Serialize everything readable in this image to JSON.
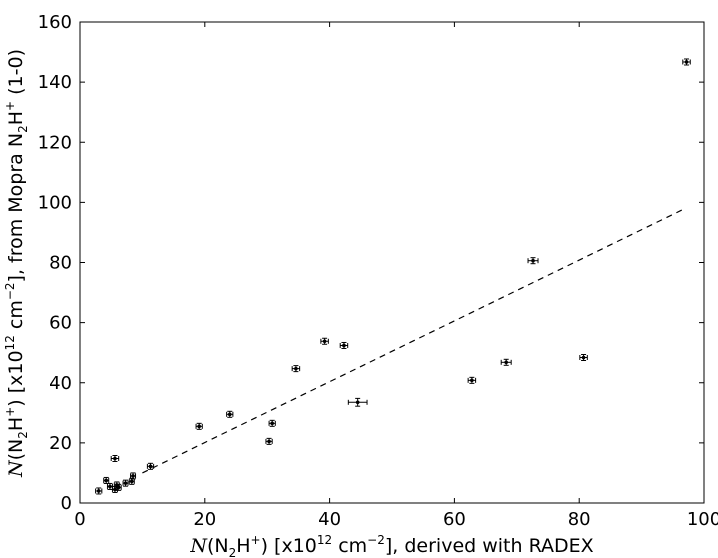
{
  "chart_data": {
    "type": "scatter",
    "title": "",
    "xlabel": {
      "pre": "N",
      "mid": "(N",
      "sub": "2",
      "post": "H",
      "sup": "+",
      "tail": ") [x10",
      "exp": "12",
      "unit": " cm",
      "uexp": "−2",
      "end": "], derived with RADEX"
    },
    "ylabel": {
      "pre": "N",
      "mid": "(N",
      "sub": "2",
      "post": "H",
      "sup": "+",
      "tail": ") [x10",
      "exp": "12",
      "unit": " cm",
      "uexp": "−2",
      "end": "], from Mopra N",
      "sub2": "2",
      "post2": "H",
      "sup2": "+",
      "end2": " (1-0)"
    },
    "xlim": [
      0,
      100
    ],
    "ylim": [
      0,
      160
    ],
    "xticks": [
      0,
      20,
      40,
      60,
      80,
      100
    ],
    "yticks": [
      0,
      20,
      40,
      60,
      80,
      100,
      120,
      140,
      160
    ],
    "grid": false,
    "fit_line": {
      "style": "dashed",
      "x": [
        10,
        97
      ],
      "y": [
        10,
        98
      ]
    },
    "points": [
      {
        "x": 3,
        "y": 4,
        "xerr": 0.5,
        "yerr": 1
      },
      {
        "x": 4.2,
        "y": 7.5,
        "xerr": 0.4,
        "yerr": 1
      },
      {
        "x": 4.8,
        "y": 5.5,
        "xerr": 0.4,
        "yerr": 1
      },
      {
        "x": 5.6,
        "y": 14.8,
        "xerr": 0.6,
        "yerr": 1
      },
      {
        "x": 5.6,
        "y": 4.5,
        "xerr": 0.4,
        "yerr": 1
      },
      {
        "x": 5.9,
        "y": 6,
        "xerr": 0.4,
        "yerr": 1
      },
      {
        "x": 6.2,
        "y": 5.2,
        "xerr": 0.4,
        "yerr": 1
      },
      {
        "x": 7.3,
        "y": 6.6,
        "xerr": 0.4,
        "yerr": 1
      },
      {
        "x": 8.3,
        "y": 7.2,
        "xerr": 0.4,
        "yerr": 1
      },
      {
        "x": 8.5,
        "y": 9,
        "xerr": 0.4,
        "yerr": 1
      },
      {
        "x": 11.3,
        "y": 12.2,
        "xerr": 0.5,
        "yerr": 1
      },
      {
        "x": 19.1,
        "y": 25.5,
        "xerr": 0.5,
        "yerr": 1
      },
      {
        "x": 24,
        "y": 29.5,
        "xerr": 0.5,
        "yerr": 1
      },
      {
        "x": 30.3,
        "y": 20.5,
        "xerr": 0.5,
        "yerr": 1
      },
      {
        "x": 30.8,
        "y": 26.5,
        "xerr": 0.5,
        "yerr": 1
      },
      {
        "x": 34.6,
        "y": 44.7,
        "xerr": 0.6,
        "yerr": 1
      },
      {
        "x": 39.2,
        "y": 53.8,
        "xerr": 0.6,
        "yerr": 1
      },
      {
        "x": 42.3,
        "y": 52.4,
        "xerr": 0.6,
        "yerr": 1
      },
      {
        "x": 44.5,
        "y": 33.5,
        "xerr": 1.5,
        "yerr": 1.3
      },
      {
        "x": 62.8,
        "y": 40.8,
        "xerr": 0.6,
        "yerr": 1
      },
      {
        "x": 68.3,
        "y": 46.8,
        "xerr": 0.8,
        "yerr": 1
      },
      {
        "x": 72.6,
        "y": 80.6,
        "xerr": 0.8,
        "yerr": 1
      },
      {
        "x": 80.7,
        "y": 48.4,
        "xerr": 0.6,
        "yerr": 1
      },
      {
        "x": 97.2,
        "y": 146.7,
        "xerr": 0.6,
        "yerr": 1
      }
    ]
  }
}
